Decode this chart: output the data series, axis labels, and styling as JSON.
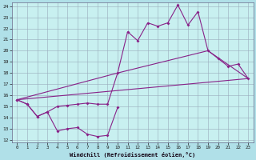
{
  "background_color": "#b0e0e8",
  "plot_bg_color": "#c8f0f0",
  "grid_color": "#99aabb",
  "line_color": "#882288",
  "xlabel": "Windchill (Refroidissement éolien,°C)",
  "xlim": [
    -0.5,
    23.5
  ],
  "ylim": [
    11.8,
    24.3
  ],
  "yticks": [
    12,
    13,
    14,
    15,
    16,
    17,
    18,
    19,
    20,
    21,
    22,
    23,
    24
  ],
  "xticks": [
    0,
    1,
    2,
    3,
    4,
    5,
    6,
    7,
    8,
    9,
    10,
    11,
    12,
    13,
    14,
    15,
    16,
    17,
    18,
    19,
    20,
    21,
    22,
    23
  ],
  "series": [
    {
      "x": [
        0,
        1,
        2,
        3,
        4,
        5,
        6,
        7,
        8,
        9,
        10
      ],
      "y": [
        15.6,
        15.2,
        14.1,
        14.5,
        12.8,
        13.0,
        13.1,
        12.5,
        12.3,
        12.4,
        14.9
      ]
    },
    {
      "x": [
        0,
        1,
        2,
        3,
        4,
        5,
        6,
        7,
        8,
        9,
        10,
        11,
        12,
        13,
        14,
        15,
        16,
        17,
        18,
        19,
        20,
        21,
        22,
        23
      ],
      "y": [
        15.6,
        15.2,
        14.1,
        14.5,
        15.0,
        15.1,
        15.2,
        15.3,
        15.2,
        15.2,
        18.0,
        21.7,
        20.9,
        22.5,
        22.2,
        22.5,
        24.1,
        22.3,
        23.5,
        20.0,
        19.3,
        18.6,
        18.8,
        17.5
      ]
    },
    {
      "x": [
        0,
        23
      ],
      "y": [
        15.6,
        17.5
      ]
    },
    {
      "x": [
        0,
        10,
        19,
        23
      ],
      "y": [
        15.6,
        18.0,
        20.0,
        17.5
      ]
    }
  ]
}
